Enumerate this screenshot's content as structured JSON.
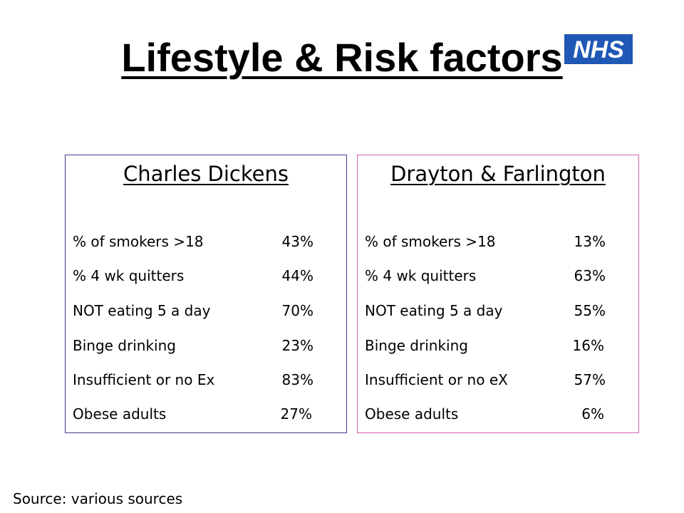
{
  "title": "Lifestyle & Risk factors",
  "logo": {
    "text": "NHS",
    "color": "#1f58b5"
  },
  "panels": [
    {
      "name": "Charles Dickens",
      "border_color": "#3a3c8c",
      "rows": [
        {
          "label": "% of smokers >18",
          "value": "43%"
        },
        {
          "label": "% 4 wk quitters",
          "value": "44%"
        },
        {
          "label": "NOT eating 5 a day",
          "value": "70%"
        },
        {
          "label": "Binge drinking",
          "value": "23%"
        },
        {
          "label": "Insufficient or no Ex",
          "value": "83%"
        },
        {
          "label": "Obese adults",
          "value": "27%"
        }
      ]
    },
    {
      "name": "Drayton & Farlington",
      "border_color": "#d060b0",
      "rows": [
        {
          "label": "% of smokers >18",
          "value": "13%"
        },
        {
          "label": "% 4 wk quitters",
          "value": "63%"
        },
        {
          "label": "NOT eating 5 a day",
          "value": "55%"
        },
        {
          "label": "Binge drinking",
          "value": "16%"
        },
        {
          "label": "Insufficient or no eX",
          "value": "57%"
        },
        {
          "label": "Obese adults",
          "value": "6%"
        }
      ]
    }
  ],
  "source": "Source: various sources"
}
